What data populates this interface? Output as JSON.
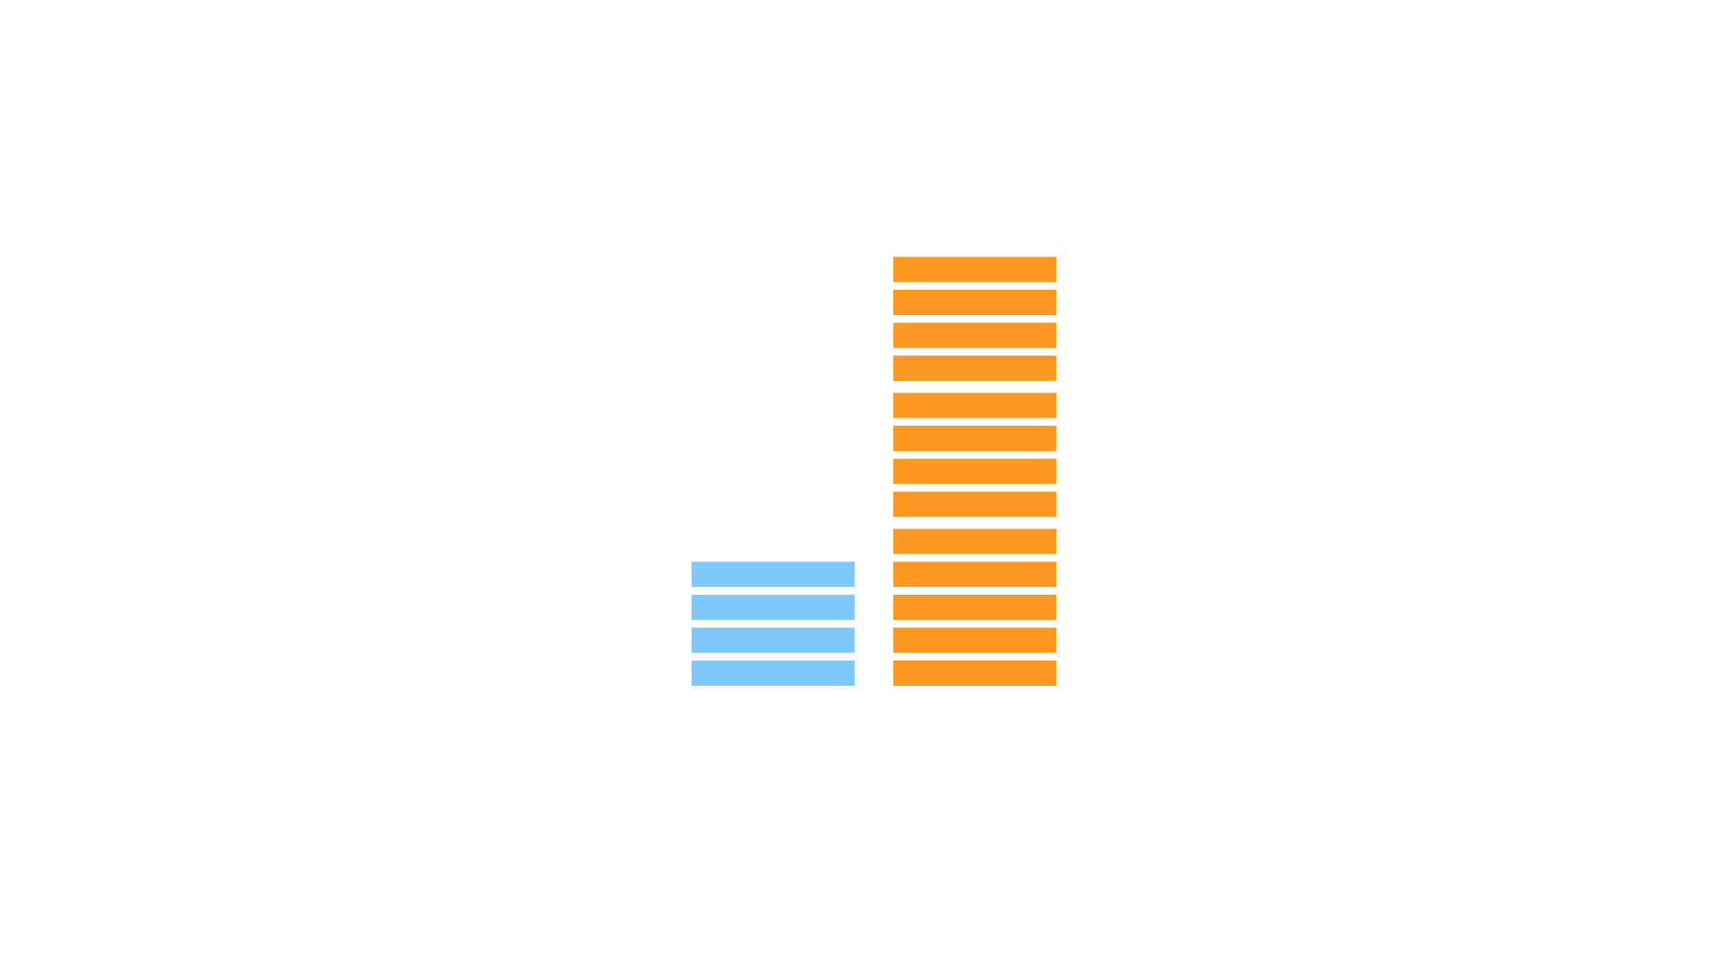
{
  "chart_data": {
    "type": "pictograph",
    "values": [
      4,
      13
    ],
    "colors": [
      "#80c8fc",
      "#ff9820"
    ]
  }
}
